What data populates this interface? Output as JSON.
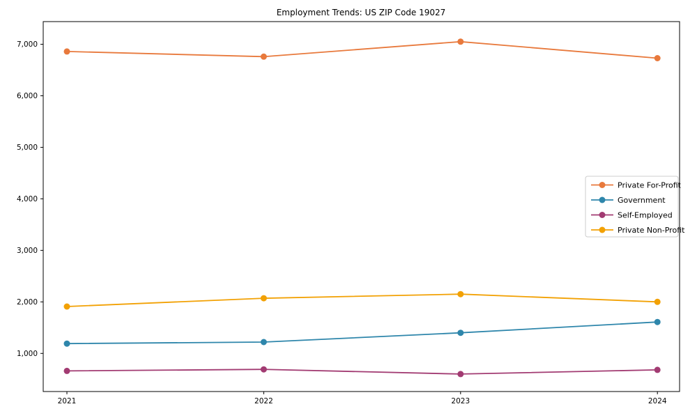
{
  "chart_data": {
    "type": "line",
    "title": "Employment Trends: US ZIP Code 19027",
    "x": [
      "2021",
      "2022",
      "2023",
      "2024"
    ],
    "series": [
      {
        "name": "Private For-Profit",
        "color": "#E8793C",
        "values": [
          6860,
          6760,
          7050,
          6730
        ]
      },
      {
        "name": "Government",
        "color": "#2E86AB",
        "values": [
          1190,
          1220,
          1400,
          1610
        ]
      },
      {
        "name": "Self-Employed",
        "color": "#A23B72",
        "values": [
          660,
          690,
          600,
          680
        ]
      },
      {
        "name": "Private Non-Profit",
        "color": "#F2A104",
        "values": [
          1910,
          2070,
          2150,
          2000
        ]
      }
    ],
    "y_ticks": [
      {
        "v": 1000,
        "label": "1,000"
      },
      {
        "v": 2000,
        "label": "2,000"
      },
      {
        "v": 3000,
        "label": "3,000"
      },
      {
        "v": 4000,
        "label": "4,000"
      },
      {
        "v": 5000,
        "label": "5,000"
      },
      {
        "v": 6000,
        "label": "6,000"
      },
      {
        "v": 7000,
        "label": "7,000"
      }
    ],
    "ylim": [
      260,
      7440
    ],
    "grid": false,
    "legend_position": "center-right",
    "marker": "circle",
    "axis_color": "#000000",
    "legend_border_color": "#cccccc",
    "background": "#ffffff"
  }
}
